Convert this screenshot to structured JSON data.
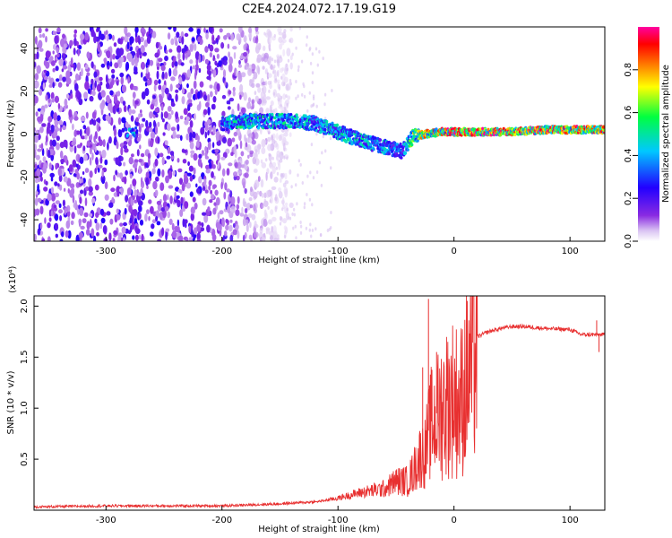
{
  "figure": {
    "title": "C2E4.2024.072.17.19.G19"
  },
  "colors": {
    "snr_line": "#e83030",
    "axis": "#000000",
    "background": "#ffffff",
    "colormap": [
      "#ffffff",
      "#d9c2f2",
      "#8a2be2",
      "#2200ff",
      "#00c8ff",
      "#00ff40",
      "#ffff00",
      "#ff8000",
      "#ff0000",
      "#ff00a0"
    ]
  },
  "chart_data": [
    {
      "type": "heatmap",
      "title": "C2E4.2024.072.17.19.G19",
      "xlabel": "Height of straight line (km)",
      "ylabel": "Frequency (Hz)",
      "xlim": [
        -362,
        130
      ],
      "ylim": [
        -50,
        50
      ],
      "x_ticks": [
        -300,
        -200,
        -100,
        0,
        100
      ],
      "y_ticks": [
        -40,
        -20,
        0,
        20,
        40
      ],
      "colorbar": {
        "label": "Normalized spectral amplitude",
        "range": [
          0,
          1
        ],
        "ticks": [
          "0.0",
          "0.2",
          "0.4",
          "0.6",
          "0.8"
        ]
      },
      "noise_region_x": [
        -362,
        -165
      ],
      "signal_trace": {
        "x": [
          -280,
          -200,
          -180,
          -160,
          -140,
          -120,
          -100,
          -80,
          -60,
          -45,
          -35,
          -25,
          -10,
          0,
          20,
          50,
          80,
          100,
          130
        ],
        "freq_hz": [
          2,
          5,
          6,
          6,
          6,
          5,
          1,
          -3,
          -6,
          -8,
          -1,
          0,
          1,
          1,
          1,
          1,
          2,
          2,
          2
        ],
        "amplitude": [
          0.25,
          0.45,
          0.55,
          0.5,
          0.5,
          0.45,
          0.5,
          0.5,
          0.45,
          0.35,
          0.7,
          0.8,
          0.9,
          0.95,
          0.95,
          0.95,
          0.95,
          0.9,
          0.9
        ]
      },
      "grid": false
    },
    {
      "type": "line",
      "xlabel": "Height of straight line (km)",
      "ylabel": "SNR (10 * v/v)",
      "y_scale_label": "(x10⁴)",
      "xlim": [
        -362,
        130
      ],
      "ylim": [
        0,
        2.1
      ],
      "x_ticks": [
        -300,
        -200,
        -100,
        0,
        100
      ],
      "y_ticks": [
        "0.5",
        "1.0",
        "1.5",
        "2.0"
      ],
      "y_tick_values": [
        0.5,
        1.0,
        1.5,
        2.0
      ],
      "series": [
        {
          "x": [
            -362,
            -300,
            -250,
            -200,
            -150,
            -120,
            -100,
            -80,
            -60,
            -50,
            -40,
            -35,
            -30,
            -25,
            -20,
            -15,
            -10,
            -5,
            0,
            5,
            10,
            15,
            20,
            30,
            40,
            50,
            60,
            80,
            100,
            110,
            120,
            125,
            130
          ],
          "values": [
            0.03,
            0.04,
            0.04,
            0.04,
            0.06,
            0.08,
            0.12,
            0.18,
            0.22,
            0.3,
            0.3,
            0.4,
            0.55,
            0.6,
            0.9,
            0.95,
            1.1,
            1.15,
            1.2,
            1.1,
            1.35,
            1.55,
            1.7,
            1.75,
            1.78,
            1.8,
            1.8,
            1.78,
            1.77,
            1.72,
            1.72,
            1.72,
            1.72
          ],
          "spikes": [
            {
              "x": -22,
              "y": 2.07
            },
            {
              "x": -27,
              "y": 1.4
            },
            {
              "x": -15,
              "y": 1.55
            },
            {
              "x": 123,
              "y": 1.86
            },
            {
              "x": 125,
              "y": 1.55
            }
          ]
        }
      ],
      "grid": false
    }
  ]
}
